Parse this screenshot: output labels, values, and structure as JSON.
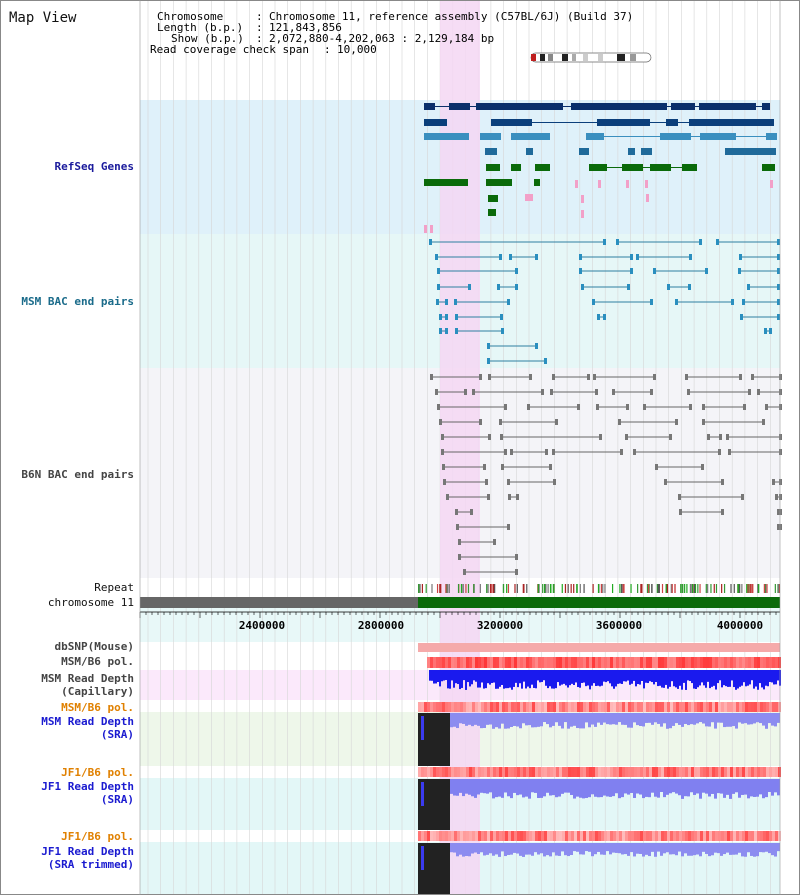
{
  "view": {
    "title": "Map View"
  },
  "info": {
    "chromosome_key": "Chromosome",
    "chromosome_val": "Chromosome 11, reference assembly (C57BL/6J) (Build 37)",
    "length_key": "Length (b.p.)",
    "length_val": "121,843,856",
    "show_key": "Show (b.p.)",
    "show_val": "2,072,880-4,202,063 : 2,129,184 bp",
    "coverage_key": "Read coverage check span",
    "coverage_val": "10,000"
  },
  "tracks": {
    "refseq": "RefSeq Genes",
    "msm_bac": "MSM BAC end pairs",
    "b6n_bac": "B6N BAC end pairs",
    "repeat": "Repeat",
    "chromosome": "chromosome 11",
    "dbsnp": "dbSNP(Mouse)",
    "msm_b6_pol_1": "MSM/B6 pol.",
    "msm_depth_cap_1": "MSM Read Depth",
    "msm_depth_cap_2": "(Capillary)",
    "msm_b6_pol_2": "MSM/B6 pol.",
    "msm_depth_sra_1": "MSM Read Depth",
    "msm_depth_sra_2": "(SRA)",
    "jf1_b6_pol_1": "JF1/B6 pol.",
    "jf1_depth_sra_1": "JF1 Read Depth",
    "jf1_depth_sra_2": "(SRA)",
    "jf1_b6_pol_2": "JF1/B6 pol.",
    "jf1_depth_trim_1": "JF1 Read Depth",
    "jf1_depth_trim_2": "(SRA trimmed)"
  },
  "ruler": {
    "ticks": [
      "2400000",
      "2800000",
      "3200000",
      "3600000",
      "4000000"
    ]
  },
  "colors": {
    "refseq_bg": "#dff1fa",
    "msm_bac_bg": "#e6f7f7",
    "b6n_bac_bg": "#f3f3f8",
    "highlight": "#f5d7f3",
    "refseq_label": "#1a1a9c",
    "msm_label": "#1a6b8a",
    "b6n_label": "#444444",
    "pol_label": "#e08000",
    "depth_label": "#1a1ad0",
    "chrom_green": "#0a6a0a",
    "chrom_gray": "#666666"
  }
}
